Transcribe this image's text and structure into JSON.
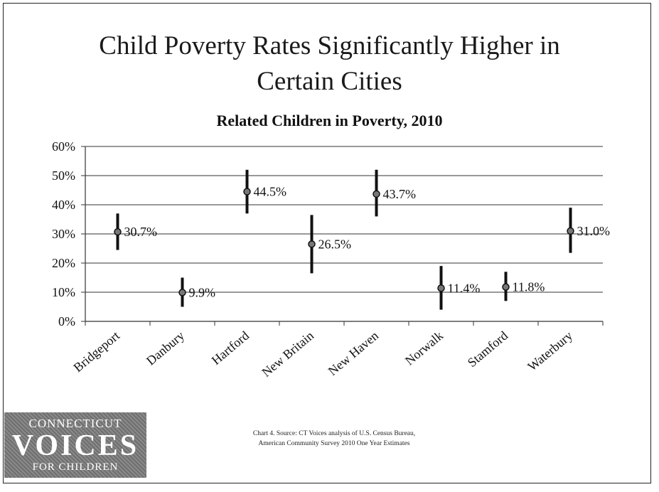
{
  "slide": {
    "title_line1": "Child Poverty Rates Significantly Higher in",
    "title_line2": "Certain Cities"
  },
  "chart_data": {
    "type": "scatter",
    "title": "Related Children in Poverty, 2010",
    "xlabel": "",
    "ylabel": "",
    "ylim": [
      0,
      60
    ],
    "yticks": [
      "0%",
      "10%",
      "20%",
      "30%",
      "40%",
      "50%",
      "60%"
    ],
    "grid": true,
    "categories": [
      "Bridgeport",
      "Danbury",
      "Hartford",
      "New Britain",
      "New Haven",
      "Norwalk",
      "Stamford",
      "Waterbury"
    ],
    "values": [
      30.7,
      9.9,
      44.5,
      26.5,
      43.7,
      11.4,
      11.8,
      31.0
    ],
    "labels": [
      "30.7%",
      "9.9%",
      "44.5%",
      "26.5%",
      "43.7%",
      "11.4%",
      "11.8%",
      "31.0%"
    ],
    "error_low": [
      24.5,
      5.0,
      37.0,
      16.5,
      36.0,
      4.0,
      7.0,
      23.5
    ],
    "error_high": [
      37.0,
      15.0,
      52.0,
      36.5,
      52.0,
      19.0,
      17.0,
      39.0
    ]
  },
  "source": {
    "line1": "Chart 4.  Source: CT Voices analysis of U.S. Census Bureau,",
    "line2": "American Community Survey 2010 One Year Estimates"
  },
  "logo": {
    "line1": "CONNECTICUT",
    "line2": "VOICES",
    "line3": "FOR CHILDREN"
  }
}
